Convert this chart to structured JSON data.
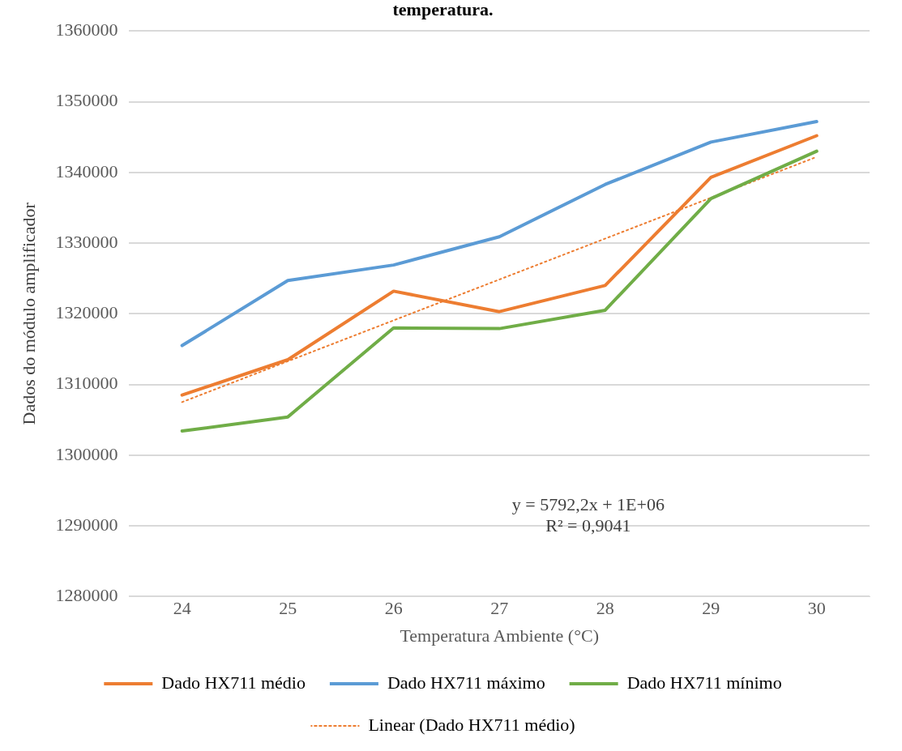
{
  "chart_data": {
    "type": "line",
    "title": "temperatura.",
    "xlabel": "Temperatura Ambiente (°C)",
    "ylabel": "Dados do módulo amplificador",
    "categories": [
      "24",
      "25",
      "26",
      "27",
      "28",
      "29",
      "30"
    ],
    "series": [
      {
        "name": "Dado HX711 médio",
        "color": "#ed7d31",
        "values": [
          1308500,
          1313500,
          1323200,
          1320300,
          1324000,
          1339300,
          1345200
        ]
      },
      {
        "name": "Dado HX711 máximo",
        "color": "#5b9bd5",
        "values": [
          1315500,
          1324700,
          1326900,
          1330900,
          1338300,
          1344300,
          1347200
        ]
      },
      {
        "name": "Dado HX711 mínimo",
        "color": "#70ad47",
        "values": [
          1303400,
          1305400,
          1318000,
          1317900,
          1320500,
          1336300,
          1343000
        ]
      },
      {
        "name": "Linear (Dado HX711 médio)",
        "color": "#ed7d31",
        "line_style": "dotted",
        "x": [
          "24",
          "30"
        ],
        "values": [
          1307500,
          1342200
        ]
      }
    ],
    "ylim": [
      1280000,
      1360000
    ],
    "yticks": [
      1280000,
      1290000,
      1300000,
      1310000,
      1320000,
      1330000,
      1340000,
      1350000,
      1360000
    ],
    "grid": "y",
    "legend": "bottom",
    "marker": "none",
    "line_style": "solid",
    "annotations": [
      "y = 5792,2x + 1E+06",
      "R² = 0,9041"
    ]
  }
}
